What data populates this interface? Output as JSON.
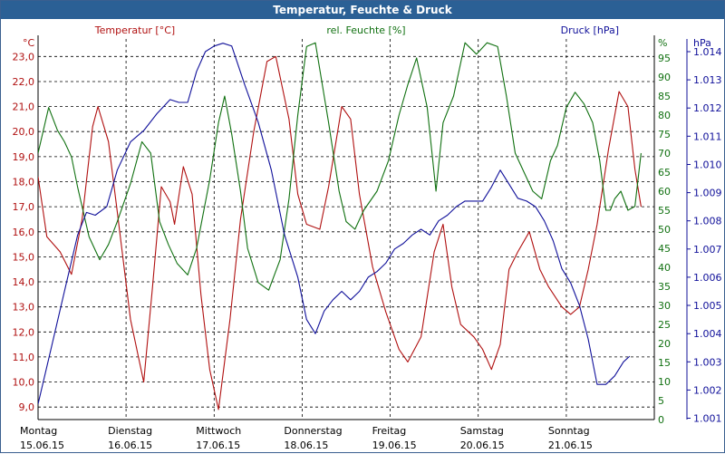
{
  "window": {
    "title": "Temperatur, Feuchte & Druck"
  },
  "colors": {
    "temperature": "#b01010",
    "humidity": "#107010",
    "pressure": "#10109a",
    "grid": "#000000",
    "titlebar": "#2b6095"
  },
  "chart_data": {
    "type": "line",
    "x_labels": [
      {
        "day": "Montag",
        "date": "15.06.15"
      },
      {
        "day": "Dienstag",
        "date": "16.06.15"
      },
      {
        "day": "Mittwoch",
        "date": "17.06.15"
      },
      {
        "day": "Donnerstag",
        "date": "18.06.15"
      },
      {
        "day": "Freitag",
        "date": "19.06.15"
      },
      {
        "day": "Samstag",
        "date": "20.06.15"
      },
      {
        "day": "Sonntag",
        "date": "21.06.15"
      }
    ],
    "x_range_days": [
      0,
      7
    ],
    "grid": true,
    "axes": {
      "temperature": {
        "label": "Temperatur [°C]",
        "unit": "°C",
        "min": 8.5,
        "max": 23.7,
        "ticks": [
          "9,0",
          "10,0",
          "11,0",
          "12,0",
          "13,0",
          "14,0",
          "15,0",
          "16,0",
          "17,0",
          "18,0",
          "19,0",
          "20,0",
          "21,0",
          "22,0",
          "23,0"
        ],
        "tick_values": [
          9,
          10,
          11,
          12,
          13,
          14,
          15,
          16,
          17,
          18,
          19,
          20,
          21,
          22,
          23
        ]
      },
      "humidity": {
        "label": "rel. Feuchte [%]",
        "unit": "%",
        "min": 0,
        "max": 100,
        "ticks": [
          "0",
          "5",
          "10",
          "15",
          "20",
          "25",
          "30",
          "35",
          "40",
          "45",
          "50",
          "55",
          "60",
          "65",
          "70",
          "75",
          "80",
          "85",
          "90",
          "95"
        ],
        "tick_values": [
          0,
          5,
          10,
          15,
          20,
          25,
          30,
          35,
          40,
          45,
          50,
          55,
          60,
          65,
          70,
          75,
          80,
          85,
          90,
          95
        ]
      },
      "pressure": {
        "label": "Druck [hPa]",
        "unit": "hPa",
        "min": 1.000952,
        "max": 1.01445,
        "ticks": [
          "1.001",
          "1.002",
          "1.003",
          "1.004",
          "1.005",
          "1.006",
          "1.007",
          "1.008",
          "1.009",
          "1.010",
          "1.011",
          "1.012",
          "1.013",
          "1.014"
        ],
        "tick_values": [
          1.001,
          1.002,
          1.003,
          1.004,
          1.005,
          1.006,
          1.007,
          1.008,
          1.009,
          1.01,
          1.011,
          1.012,
          1.013,
          1.014
        ]
      }
    },
    "series": [
      {
        "name": "Temperatur [°C]",
        "axis": "temperature",
        "color": "#b01010",
        "points": [
          [
            0,
            18.2
          ],
          [
            0.1,
            15.8
          ],
          [
            0.25,
            15.2
          ],
          [
            0.38,
            14.3
          ],
          [
            0.5,
            16.5
          ],
          [
            0.62,
            20.2
          ],
          [
            0.68,
            21
          ],
          [
            0.8,
            19.6
          ],
          [
            0.9,
            16.8
          ],
          [
            1.05,
            12.5
          ],
          [
            1.2,
            10.0
          ],
          [
            1.3,
            13.8
          ],
          [
            1.4,
            17.8
          ],
          [
            1.5,
            17.2
          ],
          [
            1.55,
            16.3
          ],
          [
            1.65,
            18.6
          ],
          [
            1.75,
            17.5
          ],
          [
            1.85,
            13.5
          ],
          [
            1.95,
            10.5
          ],
          [
            2.05,
            8.9
          ],
          [
            2.18,
            12.5
          ],
          [
            2.3,
            16.5
          ],
          [
            2.45,
            20.0
          ],
          [
            2.6,
            22.8
          ],
          [
            2.7,
            23.0
          ],
          [
            2.85,
            20.5
          ],
          [
            2.95,
            17.5
          ],
          [
            3.05,
            16.3
          ],
          [
            3.2,
            16.1
          ],
          [
            3.3,
            17.8
          ],
          [
            3.45,
            21.0
          ],
          [
            3.55,
            20.5
          ],
          [
            3.65,
            17.5
          ],
          [
            3.8,
            14.6
          ],
          [
            3.95,
            12.8
          ],
          [
            4.1,
            11.3
          ],
          [
            4.2,
            10.8
          ],
          [
            4.35,
            11.8
          ],
          [
            4.5,
            15.2
          ],
          [
            4.6,
            16.3
          ],
          [
            4.7,
            13.8
          ],
          [
            4.8,
            12.3
          ],
          [
            4.95,
            11.8
          ],
          [
            5.05,
            11.3
          ],
          [
            5.15,
            10.5
          ],
          [
            5.25,
            11.5
          ],
          [
            5.35,
            14.5
          ],
          [
            5.45,
            15.2
          ],
          [
            5.58,
            16.0
          ],
          [
            5.7,
            14.5
          ],
          [
            5.8,
            13.8
          ],
          [
            5.95,
            13.0
          ],
          [
            6.05,
            12.7
          ],
          [
            6.15,
            13.0
          ],
          [
            6.25,
            14.5
          ],
          [
            6.35,
            16.3
          ],
          [
            6.48,
            19.3
          ],
          [
            6.6,
            21.6
          ],
          [
            6.7,
            21.0
          ],
          [
            6.78,
            18.5
          ],
          [
            6.85,
            17.0
          ]
        ]
      },
      {
        "name": "rel. Feuchte [%]",
        "axis": "humidity",
        "color": "#107010",
        "points": [
          [
            0,
            70
          ],
          [
            0.12,
            82
          ],
          [
            0.22,
            76
          ],
          [
            0.3,
            73
          ],
          [
            0.38,
            69
          ],
          [
            0.45,
            61
          ],
          [
            0.58,
            48
          ],
          [
            0.7,
            42
          ],
          [
            0.8,
            46
          ],
          [
            0.9,
            52
          ],
          [
            1.05,
            62
          ],
          [
            1.18,
            73
          ],
          [
            1.28,
            70
          ],
          [
            1.38,
            52
          ],
          [
            1.48,
            46
          ],
          [
            1.58,
            41
          ],
          [
            1.7,
            38
          ],
          [
            1.8,
            45
          ],
          [
            1.95,
            63
          ],
          [
            2.05,
            78
          ],
          [
            2.12,
            85
          ],
          [
            2.2,
            75
          ],
          [
            2.3,
            60
          ],
          [
            2.38,
            45
          ],
          [
            2.5,
            36
          ],
          [
            2.62,
            34
          ],
          [
            2.75,
            42
          ],
          [
            2.85,
            58
          ],
          [
            2.95,
            80
          ],
          [
            3.05,
            98
          ],
          [
            3.15,
            99
          ],
          [
            3.3,
            78
          ],
          [
            3.42,
            60
          ],
          [
            3.5,
            52
          ],
          [
            3.6,
            50
          ],
          [
            3.7,
            55
          ],
          [
            3.85,
            60
          ],
          [
            3.98,
            68
          ],
          [
            4.1,
            80
          ],
          [
            4.2,
            88
          ],
          [
            4.3,
            95
          ],
          [
            4.42,
            82
          ],
          [
            4.52,
            60
          ],
          [
            4.6,
            78
          ],
          [
            4.72,
            85
          ],
          [
            4.85,
            99
          ],
          [
            4.98,
            96
          ],
          [
            5.1,
            99
          ],
          [
            5.22,
            98
          ],
          [
            5.32,
            85
          ],
          [
            5.42,
            70
          ],
          [
            5.52,
            65
          ],
          [
            5.62,
            60
          ],
          [
            5.72,
            58
          ],
          [
            5.82,
            68
          ],
          [
            5.9,
            72
          ],
          [
            6.0,
            82
          ],
          [
            6.1,
            86
          ],
          [
            6.2,
            83
          ],
          [
            6.3,
            78
          ],
          [
            6.38,
            68
          ],
          [
            6.45,
            55
          ],
          [
            6.5,
            55
          ],
          [
            6.55,
            58
          ],
          [
            6.62,
            60
          ],
          [
            6.7,
            55
          ],
          [
            6.78,
            56
          ],
          [
            6.85,
            70
          ]
        ]
      },
      {
        "name": "Druck [hPa]",
        "axis": "pressure",
        "color": "#10109a",
        "points": [
          [
            0,
            1.0015
          ],
          [
            0.15,
            1.0035
          ],
          [
            0.3,
            1.0055
          ],
          [
            0.45,
            1.0075
          ],
          [
            0.55,
            1.0083
          ],
          [
            0.65,
            1.0082
          ],
          [
            0.78,
            1.0085
          ],
          [
            0.9,
            1.0098
          ],
          [
            1.05,
            1.0108
          ],
          [
            1.2,
            1.0112
          ],
          [
            1.35,
            1.0118
          ],
          [
            1.5,
            1.0123
          ],
          [
            1.6,
            1.0122
          ],
          [
            1.7,
            1.0122
          ],
          [
            1.8,
            1.0133
          ],
          [
            1.9,
            1.014
          ],
          [
            2.0,
            1.0142
          ],
          [
            2.1,
            1.0143
          ],
          [
            2.2,
            1.0142
          ],
          [
            2.35,
            1.0128
          ],
          [
            2.5,
            1.0115
          ],
          [
            2.65,
            1.0098
          ],
          [
            2.8,
            1.0075
          ],
          [
            2.95,
            1.006
          ],
          [
            3.05,
            1.0045
          ],
          [
            3.15,
            1.004
          ],
          [
            3.25,
            1.0048
          ],
          [
            3.35,
            1.0052
          ],
          [
            3.45,
            1.0055
          ],
          [
            3.55,
            1.0052
          ],
          [
            3.65,
            1.0055
          ],
          [
            3.75,
            1.006
          ],
          [
            3.85,
            1.0062
          ],
          [
            3.95,
            1.0065
          ],
          [
            4.05,
            1.007
          ],
          [
            4.15,
            1.0072
          ],
          [
            4.25,
            1.0075
          ],
          [
            4.35,
            1.0077
          ],
          [
            4.45,
            1.0075
          ],
          [
            4.55,
            1.008
          ],
          [
            4.65,
            1.0082
          ],
          [
            4.75,
            1.0085
          ],
          [
            4.85,
            1.0087
          ],
          [
            4.95,
            1.0087
          ],
          [
            5.05,
            1.0087
          ],
          [
            5.15,
            1.0092
          ],
          [
            5.25,
            1.0098
          ],
          [
            5.35,
            1.0093
          ],
          [
            5.45,
            1.0088
          ],
          [
            5.55,
            1.0087
          ],
          [
            5.65,
            1.0085
          ],
          [
            5.75,
            1.008
          ],
          [
            5.85,
            1.0073
          ],
          [
            5.95,
            1.0063
          ],
          [
            6.05,
            1.0058
          ],
          [
            6.15,
            1.005
          ],
          [
            6.25,
            1.0038
          ],
          [
            6.35,
            1.0022
          ],
          [
            6.45,
            1.0022
          ],
          [
            6.55,
            1.0025
          ],
          [
            6.65,
            1.003
          ],
          [
            6.72,
            1.0032
          ]
        ]
      }
    ]
  }
}
